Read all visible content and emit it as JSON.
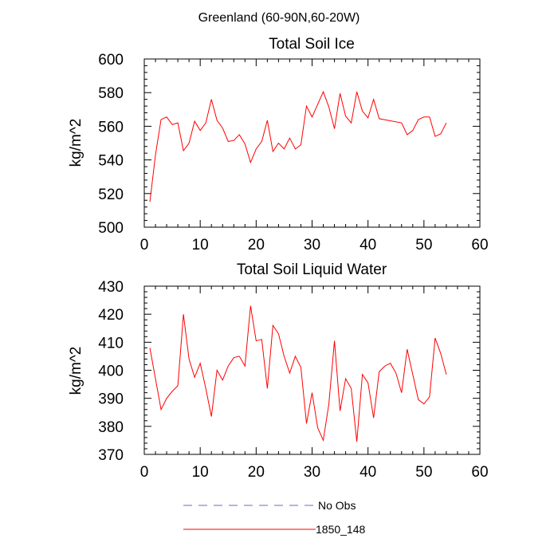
{
  "figure": {
    "title": "Greenland (60-90N,60-20W)"
  },
  "colors": {
    "series": "#ff0000",
    "no_obs": "#6a6ad0",
    "axis": "#000000"
  },
  "chart_data": [
    {
      "type": "line",
      "title": "Total Soil Ice",
      "xlabel": "",
      "ylabel": "kg/m^2",
      "xlim": [
        0,
        60
      ],
      "ylim": [
        500,
        600
      ],
      "x_ticks": [
        0,
        10,
        20,
        30,
        40,
        50,
        60
      ],
      "y_ticks": [
        500,
        520,
        540,
        560,
        580,
        600
      ],
      "grid": false,
      "series": [
        {
          "name": "1850_148",
          "x": [
            1,
            2,
            3,
            4,
            5,
            6,
            7,
            8,
            9,
            10,
            11,
            12,
            13,
            14,
            15,
            16,
            17,
            18,
            19,
            20,
            21,
            22,
            23,
            24,
            25,
            26,
            27,
            28,
            29,
            30,
            31,
            32,
            33,
            34,
            35,
            36,
            37,
            38,
            39,
            40,
            41,
            42,
            46,
            47,
            48,
            49,
            50,
            51,
            52,
            53,
            54
          ],
          "y": [
            515,
            543,
            564,
            565.5,
            561,
            562,
            545.5,
            550,
            563,
            557.5,
            562,
            576,
            563.5,
            559,
            551,
            551.5,
            555,
            549.5,
            538.5,
            546.5,
            551,
            563.5,
            545,
            550,
            546.5,
            553,
            546.5,
            549,
            572,
            565.5,
            573,
            580.5,
            571.5,
            558.5,
            579.5,
            566,
            562,
            580.5,
            569,
            565,
            576,
            564.5,
            562,
            555,
            557.5,
            564,
            565.5,
            565.5,
            554,
            555.5,
            562
          ]
        }
      ]
    },
    {
      "type": "line",
      "title": "Total Soil Liquid Water",
      "xlabel": "",
      "ylabel": "kg/m^2",
      "xlim": [
        0,
        60
      ],
      "ylim": [
        370,
        430
      ],
      "x_ticks": [
        0,
        10,
        20,
        30,
        40,
        50,
        60
      ],
      "y_ticks": [
        370,
        380,
        390,
        400,
        410,
        420,
        430
      ],
      "grid": false,
      "series": [
        {
          "name": "1850_148",
          "x": [
            1,
            2,
            3,
            4,
            5,
            6,
            7,
            8,
            9,
            10,
            11,
            12,
            13,
            14,
            15,
            16,
            17,
            18,
            19,
            20,
            21,
            22,
            23,
            24,
            25,
            26,
            27,
            28,
            29,
            30,
            31,
            32,
            33,
            34,
            35,
            36,
            37,
            38,
            39,
            40,
            41,
            42,
            43,
            44,
            45,
            46,
            47,
            48,
            49,
            50,
            51,
            52,
            53,
            54
          ],
          "y": [
            408,
            397,
            386,
            390,
            392.5,
            394.5,
            420,
            404,
            397.5,
            402.5,
            393.5,
            383.5,
            400,
            396.5,
            401.5,
            404.5,
            405,
            401.5,
            423,
            410.5,
            411,
            393.5,
            416,
            413,
            405,
            399,
            405,
            401,
            381,
            392,
            379.5,
            375,
            388,
            410.5,
            385.5,
            397,
            393.5,
            374.5,
            398.5,
            395.5,
            383,
            399.5,
            401.5,
            402.5,
            399,
            392,
            407.5,
            398.5,
            389.5,
            388,
            390.5,
            411.5,
            406,
            398.5
          ]
        }
      ]
    }
  ],
  "legend": {
    "placement": "bottom-center",
    "items": [
      {
        "label": "No Obs",
        "style": "dashed",
        "color": "#6a6ad0"
      },
      {
        "label": "1850_148",
        "style": "solid",
        "color": "#ff0000"
      }
    ]
  }
}
